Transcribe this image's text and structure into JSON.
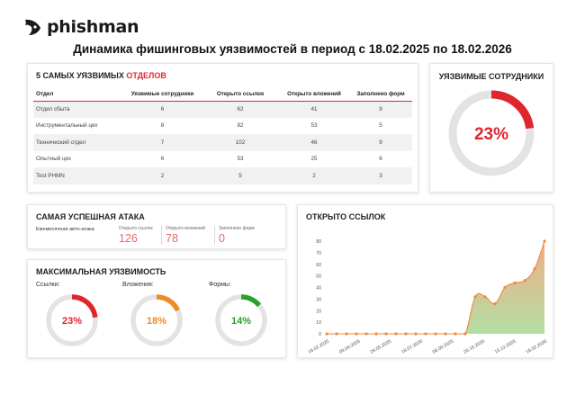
{
  "brand": {
    "name": "phishman"
  },
  "report_title": "Динамика фишинговых уязвимостей в период с 18.02.2025 по 18.02.2026",
  "departments": {
    "title_prefix": "5 САМЫХ УЯЗВИМЫХ ",
    "title_accent": "ОТДЕЛОВ",
    "columns": [
      "Отдел",
      "Уязвимые сотрудники",
      "Открыто ссылок",
      "Открыто вложений",
      "Заполнено форм"
    ],
    "rows": [
      [
        "Отдел сбыта",
        "6",
        "62",
        "41",
        "9"
      ],
      [
        "Инструментальный цех",
        "8",
        "82",
        "53",
        "5"
      ],
      [
        "Технический отдел",
        "7",
        "102",
        "46",
        "9"
      ],
      [
        "Опытный цех",
        "6",
        "53",
        "25",
        "6"
      ],
      [
        "Test PHMN",
        "2",
        "5",
        "2",
        "3"
      ]
    ]
  },
  "vulnerable_employees": {
    "title": "УЯЗВИМЫЕ СОТРУДНИКИ",
    "value": 23,
    "label": "23%"
  },
  "attack": {
    "title": "САМАЯ УСПЕШНАЯ АТАКА",
    "name": "Ежемесячная авто-атака",
    "stats": [
      {
        "label": "Открыто ссылок",
        "value": "126"
      },
      {
        "label": "Открыто вложений",
        "value": "78"
      },
      {
        "label": "Заполнено форм",
        "value": "0"
      }
    ]
  },
  "max_vulnerability": {
    "title": "МАКСИМАЛЬНАЯ УЯЗВИМОСТЬ",
    "gauges": [
      {
        "label": "Ссылки:",
        "value": 23,
        "text": "23%",
        "color": "#e0262d"
      },
      {
        "label": "Вложения:",
        "value": 18,
        "text": "18%",
        "color": "#f08a24"
      },
      {
        "label": "Формы:",
        "value": 14,
        "text": "14%",
        "color": "#26a326"
      }
    ]
  },
  "colors": {
    "accent": "#e0262d",
    "gauge_track": "#e3e3e3",
    "line": "#ef8a3a"
  },
  "chart_data": {
    "type": "area",
    "title": "ОТКРЫТО ССЫЛОК",
    "ylim": [
      0,
      80
    ],
    "yticks": [
      0,
      10,
      20,
      30,
      40,
      50,
      60,
      70,
      80
    ],
    "x_ticks": [
      "18.02.2025",
      "09.04.2025",
      "29.05.2025",
      "18.07.2025",
      "06.09.2025",
      "26.10.2025",
      "15.12.2025",
      "18.02.2026"
    ],
    "series": [
      {
        "values": [
          0,
          0,
          0,
          0,
          0,
          0,
          0,
          0,
          0,
          0,
          0,
          0,
          0,
          0,
          0,
          32,
          32,
          26,
          40,
          44,
          46,
          56,
          80
        ]
      }
    ],
    "grid": false,
    "legend": "none"
  }
}
